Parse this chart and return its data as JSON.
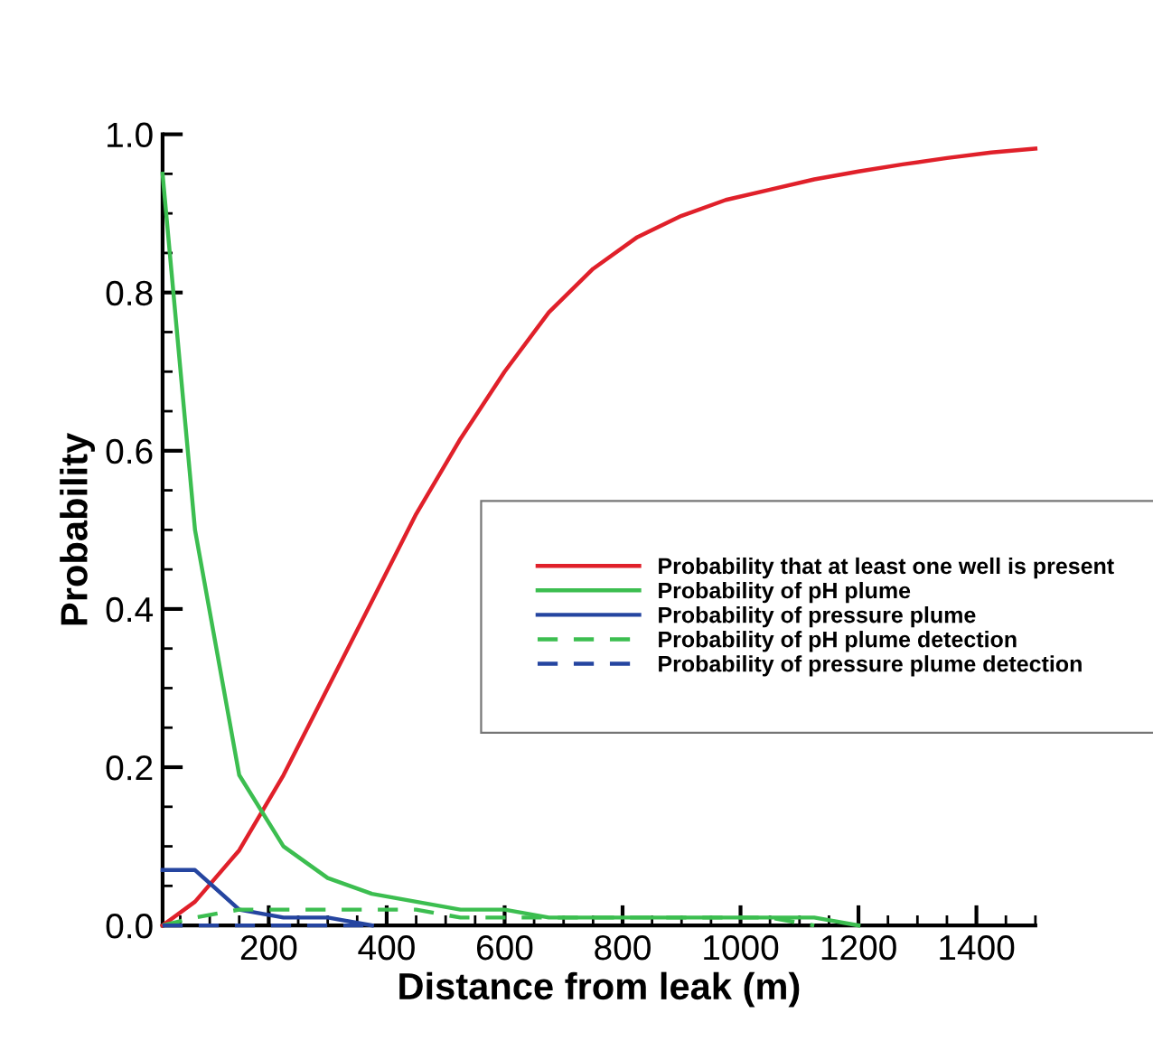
{
  "chart_data": {
    "type": "line",
    "xlabel": "Distance from leak (m)",
    "ylabel": "Probability",
    "xlim": [
      20,
      1500
    ],
    "ylim": [
      0,
      1.0
    ],
    "xticks": [
      200,
      400,
      600,
      800,
      1000,
      1200,
      1400
    ],
    "yticks": [
      {
        "value": 0,
        "label": "0.0"
      },
      {
        "value": 0.2,
        "label": "0.2"
      },
      {
        "value": 0.4,
        "label": "0.4"
      },
      {
        "value": 0.6,
        "label": "0.6"
      },
      {
        "value": 0.8,
        "label": "0.8"
      },
      {
        "value": 1.0,
        "label": "1.0"
      }
    ],
    "grid": false,
    "legend": "right",
    "marker": "none",
    "series": [
      {
        "name": "Probability that at least one well is present",
        "color": "#e0202a",
        "line_style": "solid",
        "x": [
          20,
          75,
          150,
          225,
          300,
          375,
          450,
          525,
          600,
          675,
          750,
          825,
          900,
          975,
          1050,
          1125,
          1200,
          1275,
          1350,
          1425,
          1500
        ],
        "values": [
          0,
          0.03,
          0.095,
          0.19,
          0.3,
          0.41,
          0.52,
          0.615,
          0.7,
          0.775,
          0.83,
          0.87,
          0.897,
          0.917,
          0.93,
          0.943,
          0.953,
          0.962,
          0.97,
          0.977,
          0.982
        ]
      },
      {
        "name": "Probability of pH plume",
        "color": "#3cbe50",
        "line_style": "solid",
        "x": [
          20,
          75,
          150,
          225,
          300,
          375,
          450,
          525,
          600,
          675,
          750,
          825,
          900,
          975,
          1050,
          1125,
          1200
        ],
        "values": [
          0.95,
          0.5,
          0.19,
          0.1,
          0.06,
          0.04,
          0.03,
          0.02,
          0.02,
          0.01,
          0.01,
          0.01,
          0.01,
          0.01,
          0.01,
          0.01,
          0
        ]
      },
      {
        "name": "Probability of pressure plume",
        "color": "#2545a0",
        "line_style": "solid",
        "x": [
          20,
          75,
          150,
          225,
          300,
          375
        ],
        "values": [
          0.07,
          0.07,
          0.02,
          0.01,
          0.01,
          0
        ]
      },
      {
        "name": "Probability of pH plume detection",
        "color": "#3cbe50",
        "line_style": "dashed",
        "x": [
          20,
          75,
          150,
          225,
          300,
          375,
          450,
          525,
          600,
          675,
          750,
          825,
          900,
          975,
          1050,
          1125
        ],
        "values": [
          0,
          0.01,
          0.02,
          0.02,
          0.02,
          0.02,
          0.02,
          0.01,
          0.01,
          0.01,
          0.01,
          0.01,
          0.01,
          0.01,
          0.01,
          0
        ]
      },
      {
        "name": "Probability of pressure plume detection",
        "color": "#2545a0",
        "line_style": "dashed",
        "x": [
          20,
          75,
          150,
          225,
          300,
          375
        ],
        "values": [
          0,
          0,
          0,
          0,
          0,
          0
        ]
      }
    ]
  }
}
